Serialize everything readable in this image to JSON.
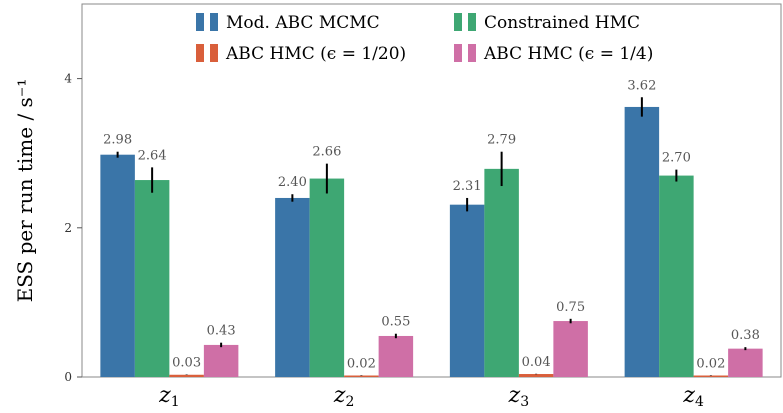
{
  "chart_data": {
    "type": "bar",
    "ylabel": "ESS per run time / s⁻¹",
    "ylim": [
      0,
      5.0
    ],
    "yticks": [
      "0",
      "2",
      "4"
    ],
    "categories": [
      {
        "base": "z",
        "sub": "1"
      },
      {
        "base": "z",
        "sub": "2"
      },
      {
        "base": "z",
        "sub": "3"
      },
      {
        "base": "z",
        "sub": "4"
      }
    ],
    "series": [
      {
        "name": "Mod. ABC MCMC",
        "color": "#3a75a8",
        "values": [
          2.98,
          2.4,
          2.31,
          3.62
        ],
        "err": [
          0.04,
          0.05,
          0.09,
          0.13
        ],
        "labels": [
          "2.98",
          "2.40",
          "2.31",
          "3.62"
        ]
      },
      {
        "name": "Constrained HMC",
        "color": "#3ea773",
        "values": [
          2.64,
          2.66,
          2.79,
          2.7
        ],
        "err": [
          0.17,
          0.2,
          0.23,
          0.08
        ],
        "labels": [
          "2.64",
          "2.66",
          "2.79",
          "2.70"
        ]
      },
      {
        "name": "ABC HMC (ϵ = 1/20)",
        "color": "#d95f3b",
        "values": [
          0.03,
          0.02,
          0.04,
          0.02
        ],
        "err": [
          0.003,
          0.003,
          0.003,
          0.003
        ],
        "labels": [
          "0.03",
          "0.02",
          "0.04",
          "0.02"
        ]
      },
      {
        "name": "ABC HMC (ϵ = 1/4)",
        "color": "#cf6fa6",
        "values": [
          0.43,
          0.55,
          0.75,
          0.38
        ],
        "err": [
          0.03,
          0.03,
          0.03,
          0.02
        ],
        "labels": [
          "0.43",
          "0.55",
          "0.75",
          "0.38"
        ]
      }
    ],
    "legend": "top-center",
    "grid": false
  }
}
